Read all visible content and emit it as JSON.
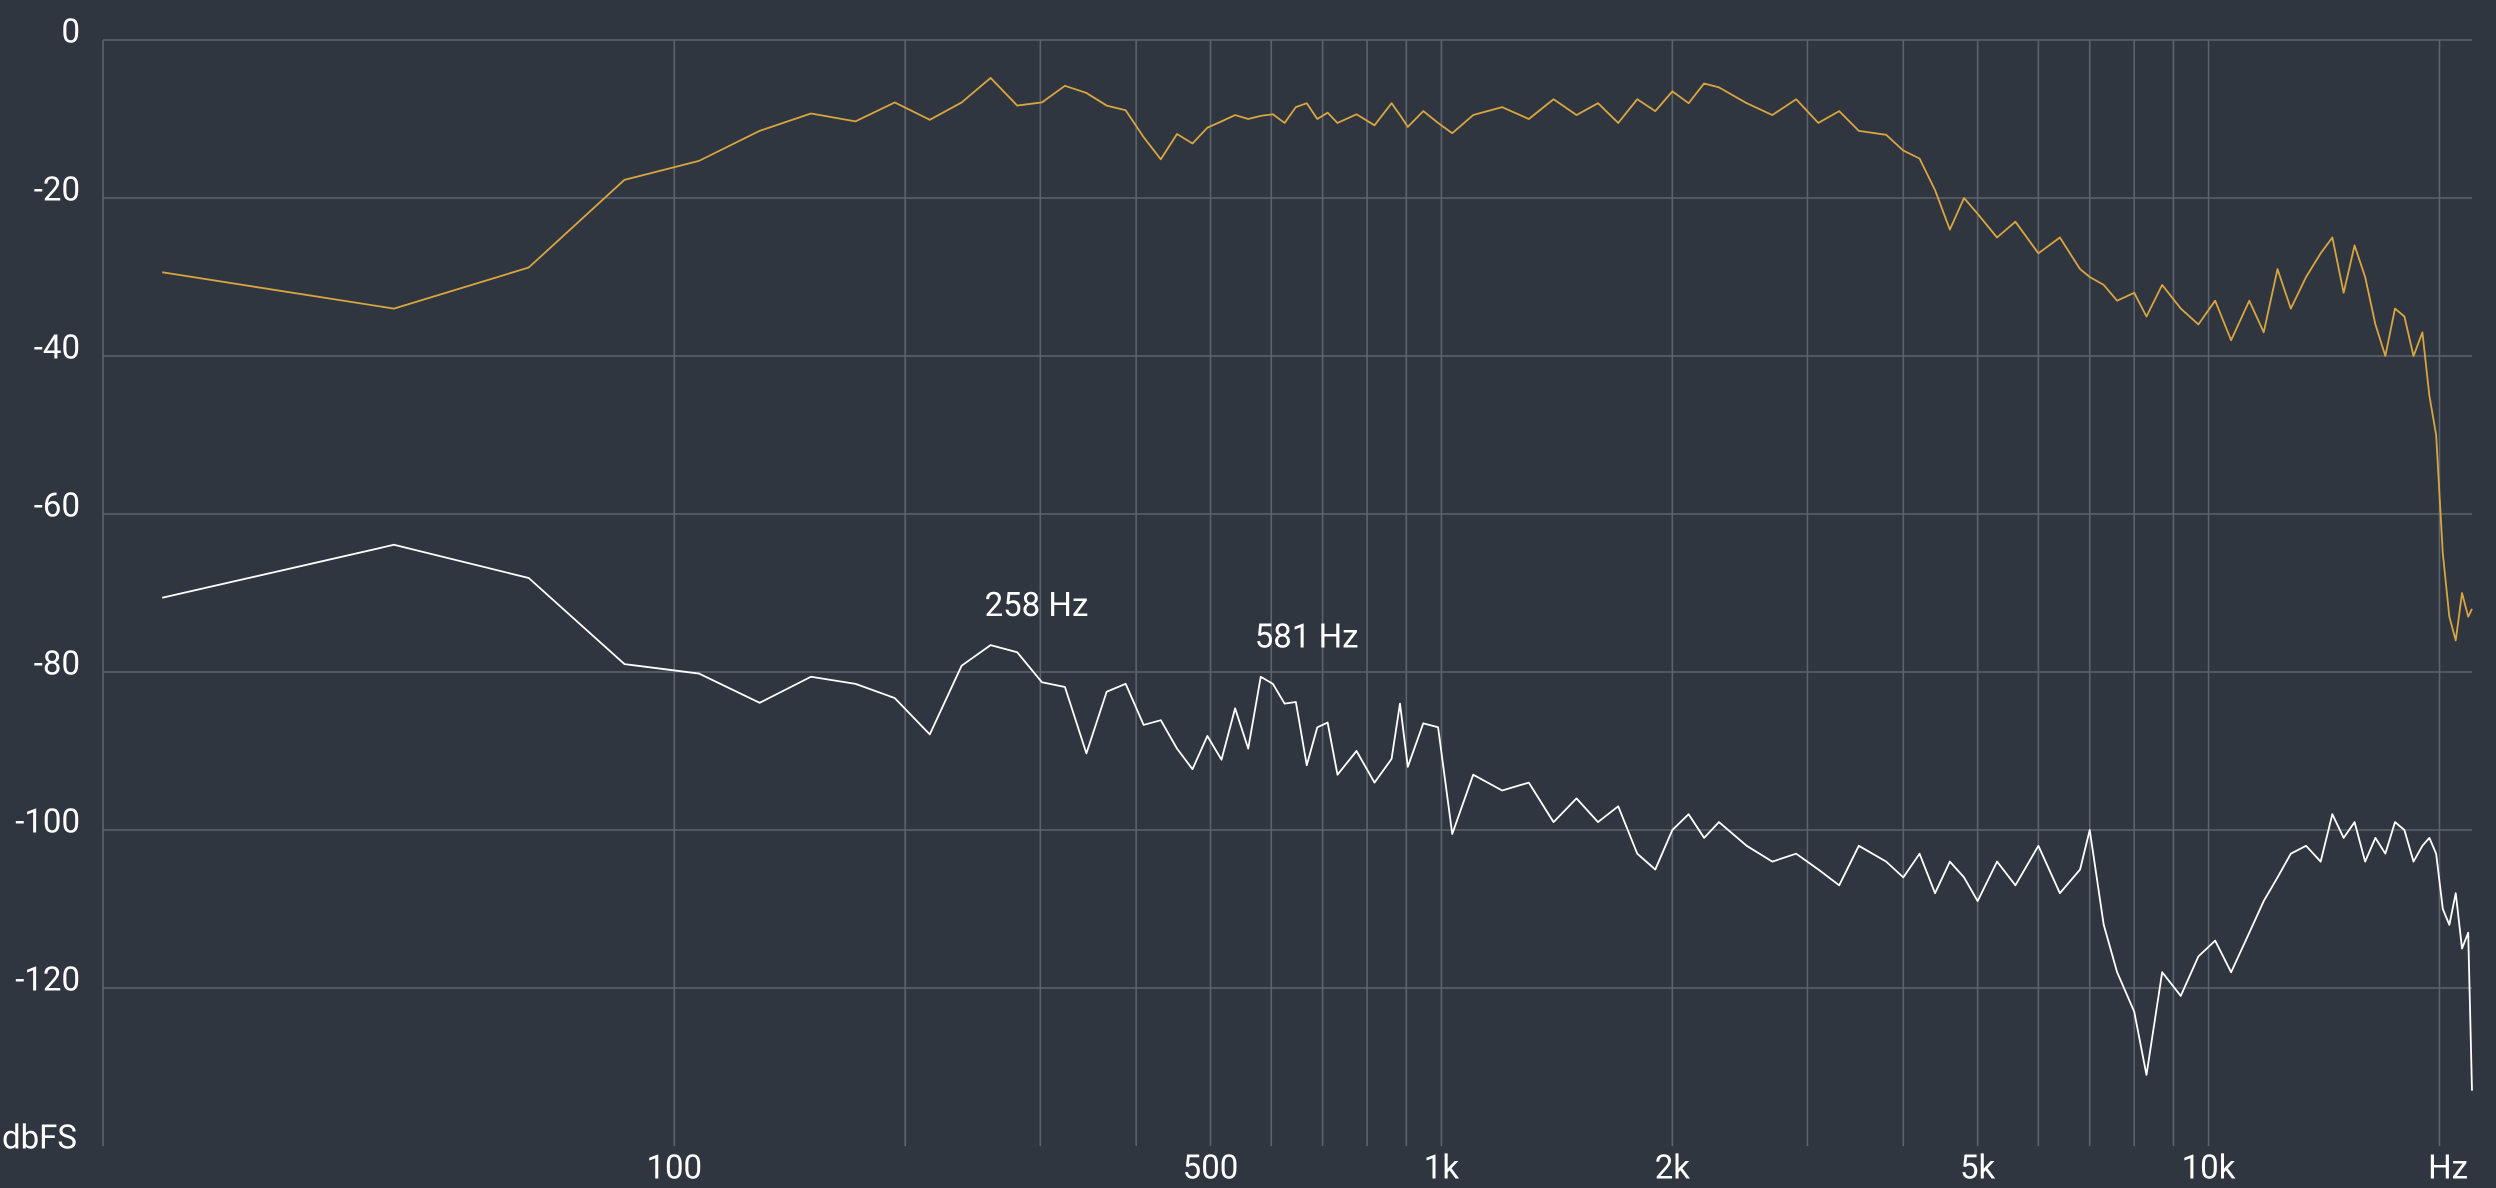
{
  "chart_data": {
    "type": "line",
    "x_label": "Hz",
    "y_label": "dbFS",
    "log_x": true,
    "grid": true,
    "xlim": [
      18,
      22050
    ],
    "ylim": [
      -140,
      0
    ],
    "yticks": [
      0,
      -20,
      -40,
      -60,
      -80,
      -100,
      -120
    ],
    "xticks": [
      100,
      500,
      {
        "value": 1000,
        "label": "1k"
      },
      {
        "value": 2000,
        "label": "2k"
      },
      {
        "value": 5000,
        "label": "5k"
      },
      {
        "value": 10000,
        "label": "10k"
      }
    ],
    "xgrid": [
      200,
      300,
      400,
      600,
      700,
      800,
      900,
      3000,
      4000,
      6000,
      7000,
      8000,
      9000,
      20000
    ],
    "x": [
      21.5,
      43.1,
      64.6,
      86.1,
      107.7,
      129.2,
      150.7,
      172.3,
      193.8,
      215.3,
      236.9,
      258.4,
      279.9,
      301.5,
      323,
      344.5,
      366.1,
      387.6,
      409.1,
      430.7,
      452.2,
      473.7,
      495.3,
      516.8,
      538.3,
      559.9,
      581.4,
      602.9,
      624.5,
      646,
      667.5,
      689,
      710.6,
      732,
      775,
      818,
      861,
      883,
      904,
      947,
      990,
      1033,
      1100,
      1200,
      1300,
      1400,
      1500,
      1600,
      1700,
      1800,
      1900,
      2000,
      2100,
      2200,
      2300,
      2500,
      2700,
      2900,
      3100,
      3300,
      3500,
      3800,
      4000,
      4200,
      4400,
      4600,
      4800,
      5000,
      5300,
      5600,
      6000,
      6400,
      6800,
      7000,
      7300,
      7600,
      8000,
      8300,
      8700,
      9200,
      9700,
      10200,
      10700,
      11300,
      11800,
      12300,
      12800,
      13400,
      14000,
      14500,
      15000,
      15500,
      16000,
      16500,
      17000,
      17500,
      18000,
      18500,
      19000,
      19400,
      19800,
      20200,
      20600,
      21000,
      21400,
      21800,
      22050
    ],
    "series": [
      {
        "color": "#d9a541",
        "values": [
          -29.4,
          -34,
          -28.8,
          -17.7,
          -15.3,
          -11.5,
          -9.3,
          -10.3,
          -7.9,
          -10.1,
          -7.9,
          -4.8,
          -8.3,
          -7.9,
          -5.8,
          -6.7,
          -8.3,
          -8.9,
          -12.3,
          -15.1,
          -11.9,
          -13.1,
          -11.1,
          -10.3,
          -9.5,
          -10,
          -9.6,
          -9.4,
          -10.5,
          -8.5,
          -8,
          -10,
          -9.2,
          -10.5,
          -9.4,
          -10.8,
          -8,
          -9.5,
          -11,
          -9,
          -10.5,
          -11.8,
          -9.5,
          -8.5,
          -10,
          -7.5,
          -9.5,
          -8,
          -10.5,
          -7.5,
          -9,
          -6.5,
          -8,
          -5.5,
          -6,
          -8,
          -9.5,
          -7.5,
          -10.5,
          -9,
          -11.5,
          -12,
          -14,
          -15,
          -19,
          -24,
          -20,
          -22,
          -25,
          -23,
          -27,
          -25,
          -29,
          -30,
          -31,
          -33,
          -32,
          -35,
          -31,
          -34,
          -36,
          -33,
          -38,
          -33,
          -37,
          -29,
          -34,
          -30,
          -27,
          -25,
          -32,
          -26,
          -30,
          -36,
          -40,
          -34,
          -35,
          -40,
          -37,
          -45,
          -50,
          -65,
          -73,
          -76,
          -70,
          -73,
          -72
        ]
      },
      {
        "color": "#ffffff",
        "values": [
          -70.6,
          -63.9,
          -68.1,
          -79,
          -80.2,
          -83.9,
          -80.6,
          -81.5,
          -83.3,
          -87.9,
          -79.2,
          -76.6,
          -77.5,
          -81.3,
          -81.9,
          -90.3,
          -82.5,
          -81.5,
          -86.7,
          -86.1,
          -89.7,
          -92.3,
          -88.1,
          -91.1,
          -84.6,
          -89.7,
          -80.6,
          -81.5,
          -84,
          -83.8,
          -91.8,
          -87,
          -86.4,
          -93,
          -90,
          -94,
          -91,
          -84,
          -92,
          -86.5,
          -87,
          -100.5,
          -93,
          -95,
          -94,
          -99,
          -96,
          -99,
          -97,
          -103,
          -105,
          -100,
          -98,
          -101,
          -99,
          -102,
          -104,
          -103,
          -105,
          -107,
          -102,
          -104,
          -106,
          -103,
          -108,
          -104,
          -106,
          -109,
          -104,
          -107,
          -102,
          -108,
          -105,
          -100,
          -112,
          -118,
          -123,
          -131,
          -118,
          -121,
          -116,
          -114,
          -118,
          -113,
          -109,
          -106,
          -103,
          -102,
          -104,
          -98,
          -101,
          -99,
          -104,
          -101,
          -103,
          -99,
          -100,
          -104,
          -102,
          -101,
          -103,
          -110,
          -112,
          -108,
          -115,
          -113,
          -133
        ]
      }
    ],
    "annotations": [
      {
        "text": "258 Hz",
        "x": 258.4,
        "y": -76.6,
        "color": "#e07b2c"
      },
      {
        "text": "581 Hz",
        "x": 581.4,
        "y": -80.6,
        "color": "#e07b2c"
      }
    ]
  }
}
